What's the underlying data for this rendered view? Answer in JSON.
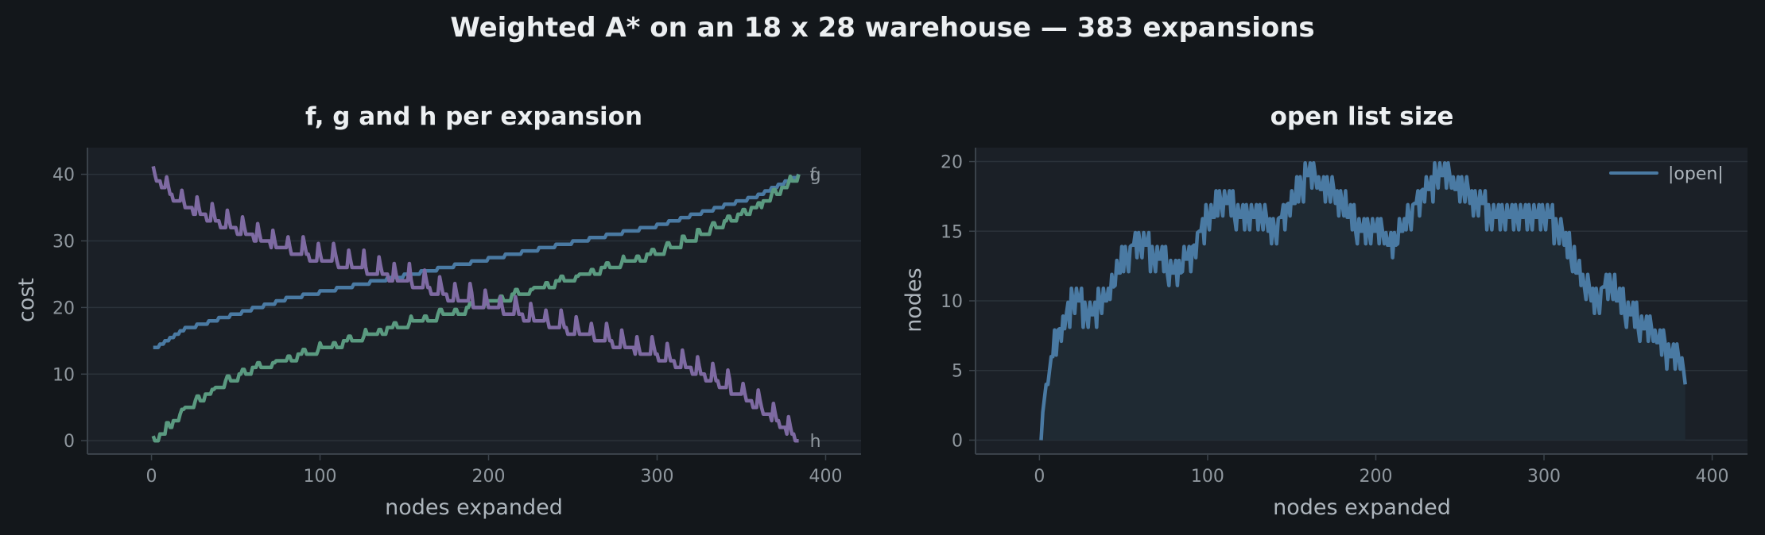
{
  "figure": {
    "title": "Weighted A* on an 18 x 28 warehouse — 383 expansions",
    "background": "#13171b",
    "panel_background": "#1b2027",
    "grid_color": "#2b323a",
    "axis_color": "#3a424a"
  },
  "chart_data": [
    {
      "type": "line",
      "title": "f, g and h per expansion",
      "xlabel": "nodes expanded",
      "ylabel": "cost",
      "xlim": [
        -38,
        421
      ],
      "ylim": [
        -2,
        44
      ],
      "xticks": [
        0,
        100,
        200,
        300,
        400
      ],
      "yticks": [
        0,
        10,
        20,
        30,
        40
      ],
      "grid": "horizontal",
      "x_range": [
        1,
        384
      ],
      "series": [
        {
          "name": "f",
          "color": "#4a7aa3",
          "end_label": "f",
          "x": [
            1,
            20,
            40,
            60,
            80,
            100,
            120,
            140,
            160,
            180,
            200,
            220,
            240,
            260,
            280,
            300,
            320,
            340,
            360,
            384
          ],
          "values": [
            14,
            17,
            18.5,
            20,
            21.5,
            22.5,
            23.5,
            24.5,
            25.5,
            26.5,
            27.5,
            28.5,
            29.5,
            30.5,
            31.5,
            32.5,
            34,
            35.5,
            37,
            40
          ]
        },
        {
          "name": "g",
          "color": "#5a9a80",
          "end_label": "g",
          "x": [
            1,
            20,
            40,
            60,
            80,
            100,
            120,
            140,
            160,
            180,
            200,
            220,
            240,
            260,
            280,
            300,
            320,
            340,
            360,
            384
          ],
          "values": [
            0,
            5,
            8.5,
            11,
            12.5,
            14,
            15.5,
            17,
            18.5,
            19.5,
            21,
            22.5,
            24,
            25.5,
            27,
            28.5,
            30.5,
            33,
            35.5,
            40
          ]
        },
        {
          "name": "h",
          "color": "#7e6aa2",
          "end_label": "h",
          "x": [
            1,
            10,
            20,
            40,
            60,
            80,
            100,
            120,
            140,
            160,
            180,
            200,
            220,
            240,
            260,
            280,
            300,
            320,
            340,
            360,
            384
          ],
          "values": [
            40,
            37,
            35,
            32.5,
            30.5,
            28.5,
            27,
            26,
            24.5,
            23,
            21,
            20,
            18.5,
            17,
            15.5,
            14,
            12.5,
            10.5,
            8,
            5,
            0
          ]
        }
      ]
    },
    {
      "type": "area",
      "title": "open list size",
      "xlabel": "nodes expanded",
      "ylabel": "nodes",
      "xlim": [
        -38,
        421
      ],
      "ylim": [
        -1,
        21
      ],
      "xticks": [
        0,
        100,
        200,
        300,
        400
      ],
      "yticks": [
        0,
        5,
        10,
        15,
        20
      ],
      "grid": "horizontal",
      "legend": "top-right",
      "series": [
        {
          "name": "|open|",
          "color": "#4a7aa3",
          "fill": "#1f2a33",
          "x": [
            1,
            3,
            6,
            10,
            14,
            20,
            30,
            40,
            50,
            60,
            70,
            80,
            90,
            100,
            110,
            120,
            130,
            140,
            150,
            160,
            170,
            180,
            190,
            200,
            210,
            220,
            230,
            240,
            250,
            260,
            270,
            280,
            290,
            300,
            310,
            320,
            330,
            340,
            350,
            360,
            370,
            375,
            380,
            384
          ],
          "values": [
            0,
            3,
            5,
            7,
            8,
            10,
            9,
            10,
            13,
            14,
            13,
            12,
            13,
            16,
            17,
            16,
            16,
            15,
            17,
            19,
            18,
            17,
            15,
            15,
            14,
            16,
            18,
            19,
            18,
            17,
            16,
            16,
            16,
            16,
            15,
            12,
            10,
            11,
            9,
            8,
            7,
            6,
            6,
            4
          ]
        }
      ]
    }
  ]
}
